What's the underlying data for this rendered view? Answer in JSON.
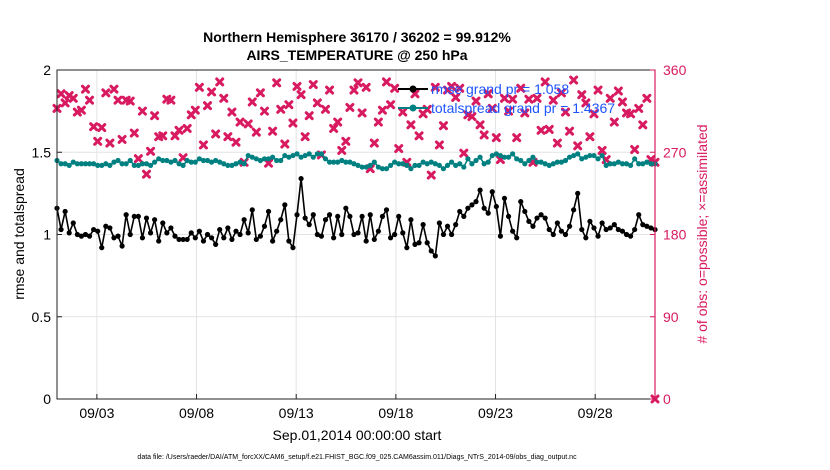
{
  "chart_data": {
    "type": "line",
    "title_line1": "Northern Hemisphere 36170 / 36202 = 99.912%",
    "title_line2": "AIRS_TEMPERATURE @ 250 hPa",
    "xlabel": "Sep.01,2014 00:00:00 start",
    "ylabel_left": "rmse and totalspread",
    "ylabel_right": "# of obs: o=possible; ×=assimilated",
    "footnote": "data file: /Users/raeder/DAI/ATM_forcXX/CAM6_setup/f.e21.FHIST_BGC.f09_025.CAM6assim.011/Diags_NTrS_2014-09/obs_diag_output.nc",
    "x_ticks": [
      {
        "day": 3,
        "label": "09/03"
      },
      {
        "day": 8,
        "label": "09/08"
      },
      {
        "day": 13,
        "label": "09/13"
      },
      {
        "day": 18,
        "label": "09/18"
      },
      {
        "day": 23,
        "label": "09/23"
      },
      {
        "day": 28,
        "label": "09/28"
      }
    ],
    "xlim_days": [
      1,
      31
    ],
    "ylim_left": [
      0,
      2
    ],
    "yticks_left": [
      "0",
      "0.5",
      "1",
      "1.5",
      "2"
    ],
    "ylim_right": [
      0,
      360
    ],
    "yticks_right": [
      "0",
      "90",
      "180",
      "270",
      "360"
    ],
    "grid": true,
    "legend_placement": "top-right",
    "colors": {
      "rmse": "#000000",
      "spread": "#008080",
      "obs": "#d81b60",
      "legend_text": "#1f55ff"
    },
    "series": [
      {
        "name": "rmse grand pr = 1.058",
        "axis": "left",
        "values": [
          1.16,
          1.03,
          1.14,
          1.01,
          1.07,
          1.0,
          0.99,
          1.0,
          0.99,
          1.03,
          1.02,
          0.92,
          1.05,
          1.04,
          0.98,
          0.99,
          0.93,
          1.12,
          1.0,
          1.11,
          1.11,
          0.98,
          1.1,
          1.01,
          1.09,
          0.96,
          1.07,
          1.01,
          1.04,
          0.99,
          0.97,
          0.97,
          0.97,
          1.01,
          0.98,
          1.02,
          0.96,
          1.0,
          0.98,
          0.94,
          1.03,
          0.98,
          1.04,
          0.97,
          1.02,
          1.0,
          1.09,
          1.01,
          1.15,
          0.97,
          0.99,
          1.05,
          1.14,
          0.96,
          1.02,
          1.09,
          1.18,
          0.96,
          0.92,
          1.12,
          1.34,
          1.1,
          1.06,
          1.12,
          1.0,
          0.99,
          1.09,
          1.12,
          0.98,
          1.11,
          1.0,
          1.16,
          1.11,
          1.0,
          1.01,
          1.11,
          0.96,
          1.12,
          0.97,
          1.02,
          1.11,
          1.15,
          0.98,
          1.0,
          1.11,
          1.01,
          0.92,
          1.09,
          0.94,
          0.95,
          1.06,
          0.95,
          0.9,
          0.87,
          1.07,
          1.0,
          1.05,
          1.0,
          1.06,
          1.14,
          1.11,
          1.16,
          1.18,
          1.2,
          1.27,
          1.16,
          1.13,
          1.26,
          1.17,
          0.99,
          1.22,
          1.11,
          1.02,
          0.98,
          1.2,
          1.14,
          1.08,
          1.05,
          1.1,
          1.12,
          1.1,
          1.03,
          1.0,
          1.07,
          1.02,
          1.0,
          1.05,
          1.15,
          1.25,
          1.03,
          0.98,
          1.08,
          1.04,
          0.99,
          1.07,
          1.03,
          1.04,
          1.06,
          1.03,
          1.02,
          1.0,
          0.99,
          1.03,
          1.12,
          1.06,
          1.05,
          1.04,
          1.03
        ]
      },
      {
        "name": "totalspread grand pr = 1.4367",
        "axis": "left",
        "values": [
          1.45,
          1.43,
          1.43,
          1.42,
          1.44,
          1.43,
          1.43,
          1.43,
          1.43,
          1.43,
          1.42,
          1.42,
          1.43,
          1.42,
          1.44,
          1.45,
          1.43,
          1.43,
          1.45,
          1.42,
          1.42,
          1.43,
          1.43,
          1.42,
          1.44,
          1.46,
          1.45,
          1.45,
          1.44,
          1.45,
          1.43,
          1.42,
          1.45,
          1.44,
          1.44,
          1.46,
          1.45,
          1.45,
          1.44,
          1.45,
          1.44,
          1.43,
          1.42,
          1.42,
          1.43,
          1.44,
          1.43,
          1.48,
          1.47,
          1.46,
          1.45,
          1.46,
          1.46,
          1.47,
          1.45,
          1.45,
          1.48,
          1.47,
          1.48,
          1.49,
          1.47,
          1.48,
          1.49,
          1.47,
          1.49,
          1.49,
          1.46,
          1.44,
          1.44,
          1.44,
          1.45,
          1.44,
          1.44,
          1.43,
          1.42,
          1.41,
          1.41,
          1.42,
          1.44,
          1.41,
          1.4,
          1.4,
          1.42,
          1.44,
          1.43,
          1.43,
          1.42,
          1.4,
          1.42,
          1.42,
          1.44,
          1.43,
          1.44,
          1.43,
          1.42,
          1.4,
          1.42,
          1.44,
          1.42,
          1.43,
          1.41,
          1.46,
          1.43,
          1.45,
          1.47,
          1.43,
          1.44,
          1.48,
          1.49,
          1.48,
          1.47,
          1.47,
          1.49,
          1.46,
          1.45,
          1.43,
          1.45,
          1.47,
          1.44,
          1.44,
          1.43,
          1.42,
          1.43,
          1.44,
          1.44,
          1.45,
          1.47,
          1.48,
          1.49,
          1.46,
          1.47,
          1.48,
          1.48,
          1.46,
          1.48,
          1.42,
          1.43,
          1.43,
          1.44,
          1.43,
          1.43,
          1.42,
          1.46,
          1.43,
          1.43,
          1.44,
          1.43,
          1.43
        ]
      },
      {
        "name": "obs assimilated",
        "axis": "right",
        "values": [
          318,
          334,
          324,
          332,
          329,
          314,
          316,
          339,
          327,
          298,
          282,
          297,
          335,
          280,
          339,
          327,
          284,
          327,
          326,
          291,
          263,
          315,
          246,
          271,
          310,
          287,
          288,
          328,
          327,
          288,
          294,
          264,
          296,
          311,
          316,
          341,
          278,
          321,
          336,
          290,
          347,
          329,
          287,
          314,
          281,
          303,
          259,
          301,
          325,
          292,
          335,
          315,
          258,
          293,
          346,
          317,
          279,
          322,
          302,
          342,
          333,
          287,
          310,
          344,
          324,
          267,
          317,
          338,
          296,
          303,
          272,
          282,
          319,
          338,
          346,
          313,
          341,
          252,
          280,
          303,
          316,
          347,
          322,
          340,
          274,
          314,
          259,
          300,
          334,
          288,
          312,
          317,
          245,
          341,
          278,
          299,
          338,
          342,
          330,
          340,
          269,
          311,
          309,
          326,
          300,
          289,
          334,
          318,
          286,
          262,
          329,
          315,
          328,
          286,
          340,
          313,
          328,
          259,
          329,
          294,
          347,
          295,
          327,
          280,
          335,
          314,
          293,
          349,
          277,
          333,
          324,
          287,
          312,
          338,
          272,
          262,
          329,
          303,
          337,
          325,
          313,
          312,
          273,
          318,
          300,
          329,
          262,
          259
        ]
      }
    ]
  }
}
